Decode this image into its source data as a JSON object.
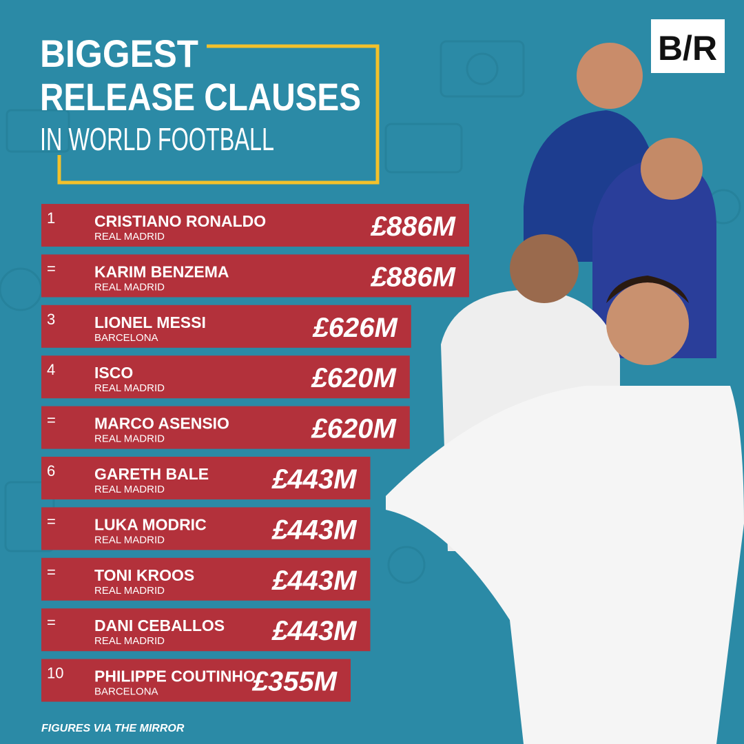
{
  "chart_data": {
    "type": "bar",
    "title": [
      "BIGGEST",
      "RELEASE CLAUSES"
    ],
    "subtitle": "IN WORLD FOOTBALL",
    "logo": "B/R",
    "ranks": [
      "1",
      "=",
      "3",
      "4",
      "=",
      "6",
      "=",
      "=",
      "=",
      "10"
    ],
    "categories": [
      "CRISTIANO RONALDO",
      "KARIM BENZEMA",
      "LIONEL MESSI",
      "ISCO",
      "MARCO ASENSIO",
      "GARETH BALE",
      "LUKA MODRIC",
      "TONI KROOS",
      "DANI CEBALLOS",
      "PHILIPPE COUTINHO"
    ],
    "clubs": [
      "REAL MADRID",
      "REAL MADRID",
      "BARCELONA",
      "REAL MADRID",
      "REAL MADRID",
      "REAL MADRID",
      "REAL MADRID",
      "REAL MADRID",
      "REAL MADRID",
      "BARCELONA"
    ],
    "values": [
      886,
      886,
      626,
      620,
      620,
      443,
      443,
      443,
      443,
      355
    ],
    "value_labels": [
      "£886M",
      "£886M",
      "£626M",
      "£620M",
      "£620M",
      "£443M",
      "£443M",
      "£443M",
      "£443M",
      "£355M"
    ],
    "color": "#b3313b",
    "source": "FIGURES VIA THE MIRROR"
  }
}
